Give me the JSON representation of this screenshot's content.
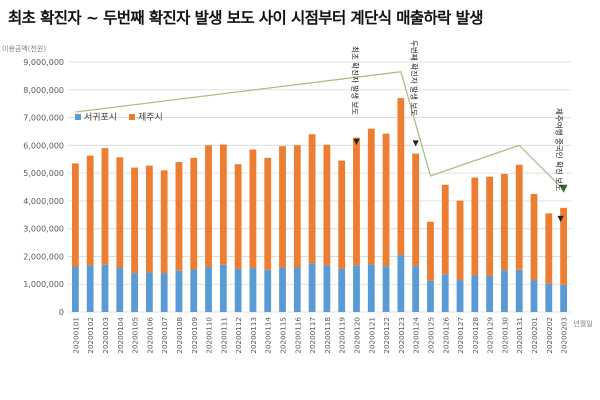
{
  "title": "최초 확진자 ~ 두번째 확진자 발생 보도 사이 시점부터 계단식 매출하락 발생",
  "chart_data": {
    "type": "bar",
    "stacked": true,
    "title": "최초 확진자 ~ 두번째 확진자 발생 보도 사이 시점부터 계단식 매출하락 발생",
    "ylabel": "이용금액(천원)",
    "xlabel": "년월일",
    "ylim": [
      0,
      9000000
    ],
    "yticks": [
      0,
      1000000,
      2000000,
      3000000,
      4000000,
      5000000,
      6000000,
      7000000,
      8000000,
      9000000
    ],
    "ytick_labels": [
      "0",
      "1,000,000",
      "2,000,000",
      "3,000,000",
      "4,000,000",
      "5,000,000",
      "6,000,000",
      "7,000,000",
      "8,000,000",
      "9,000,000"
    ],
    "grid": true,
    "legend_position": "left",
    "categories": [
      "20200101",
      "20200102",
      "20200103",
      "20200104",
      "20200105",
      "20200106",
      "20200107",
      "20200108",
      "20200109",
      "20200110",
      "20200111",
      "20200112",
      "20200113",
      "20200114",
      "20200115",
      "20200116",
      "20200117",
      "20200118",
      "20200119",
      "20200120",
      "20200121",
      "20200122",
      "20200123",
      "20200124",
      "20200125",
      "20200126",
      "20200127",
      "20200128",
      "20200129",
      "20200130",
      "20200131",
      "20200201",
      "20200202",
      "20200203"
    ],
    "series": [
      {
        "name": "서귀포시",
        "color": "#5b9bd5",
        "values": [
          1620000,
          1680000,
          1700000,
          1600000,
          1400000,
          1420000,
          1400000,
          1500000,
          1530000,
          1620000,
          1700000,
          1550000,
          1580000,
          1520000,
          1600000,
          1600000,
          1750000,
          1680000,
          1550000,
          1680000,
          1720000,
          1650000,
          2050000,
          1650000,
          1120000,
          1360000,
          1150000,
          1320000,
          1300000,
          1500000,
          1520000,
          1150000,
          1020000,
          980000
        ]
      },
      {
        "name": "제주시",
        "color": "#ed7d31",
        "values": [
          3730000,
          3950000,
          4200000,
          3970000,
          3800000,
          3850000,
          3700000,
          3900000,
          4020000,
          4380000,
          4330000,
          3770000,
          4270000,
          4030000,
          4370000,
          4400000,
          4650000,
          4340000,
          3900000,
          4600000,
          4880000,
          4770000,
          5650000,
          4050000,
          2130000,
          3220000,
          2860000,
          3520000,
          3570000,
          3470000,
          3780000,
          3100000,
          2530000,
          2770000
        ]
      }
    ],
    "annotations": [
      {
        "text": "최초 확진자 발생 보도",
        "marker": "▼",
        "category": "20200120"
      },
      {
        "text": "두번째 확진자 발생 보도",
        "marker": "▼",
        "category": "20200124"
      },
      {
        "text": "제주여행 중국인 확진 보도",
        "marker": "▼",
        "category": "20200203"
      }
    ],
    "trend_line": {
      "color": "#a9bf8a",
      "points": [
        {
          "category": "20200101",
          "value": 7200000
        },
        {
          "category": "20200123",
          "value": 8650000
        },
        {
          "category": "20200125",
          "value": 4900000
        },
        {
          "category": "20200131",
          "value": 6000000
        },
        {
          "category": "20200203",
          "value": 4400000
        }
      ],
      "arrow_color": "#2e6e2a"
    }
  }
}
